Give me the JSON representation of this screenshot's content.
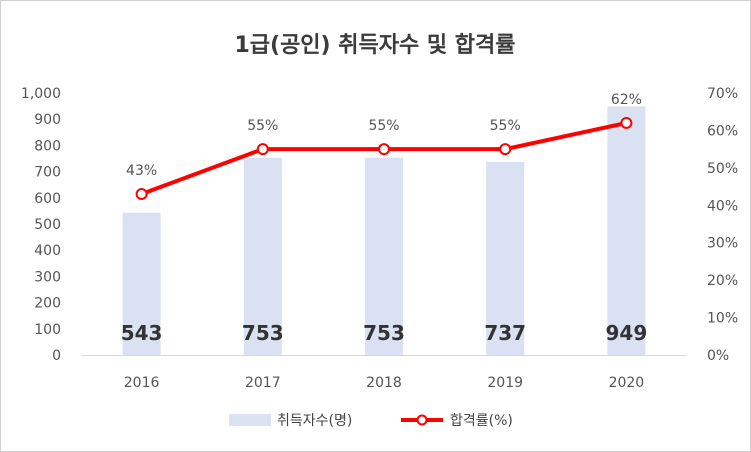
{
  "chart_data": {
    "type": "bar",
    "title": "1급(공인) 취득자수 및 합격률",
    "categories": [
      "2016",
      "2017",
      "2018",
      "2019",
      "2020"
    ],
    "series": [
      {
        "name": "취득자수(명)",
        "type": "bar",
        "axis": "left",
        "values": [
          543,
          753,
          753,
          737,
          949
        ],
        "labels": [
          "543",
          "753",
          "753",
          "737",
          "949"
        ],
        "color": "#d9e1f2"
      },
      {
        "name": "합격률(%)",
        "type": "line",
        "axis": "right",
        "values": [
          43,
          55,
          55,
          55,
          62
        ],
        "labels": [
          "43%",
          "55%",
          "55%",
          "55%",
          "62%"
        ],
        "color": "#ff0000"
      }
    ],
    "y_left": {
      "range": [
        0,
        1000
      ],
      "ticks": [
        0,
        100,
        200,
        300,
        400,
        500,
        600,
        700,
        800,
        900,
        1000
      ],
      "tick_labels": [
        "0",
        "100",
        "200",
        "300",
        "400",
        "500",
        "600",
        "700",
        "800",
        "900",
        "1,000"
      ]
    },
    "y_right": {
      "range": [
        0,
        70
      ],
      "ticks": [
        0,
        10,
        20,
        30,
        40,
        50,
        60,
        70
      ],
      "tick_labels": [
        "0%",
        "10%",
        "20%",
        "30%",
        "40%",
        "50%",
        "60%",
        "70%"
      ]
    },
    "grid": false,
    "legend_position": "bottom"
  }
}
